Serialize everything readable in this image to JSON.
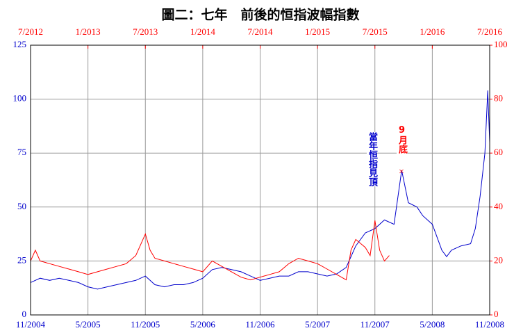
{
  "chart_data": {
    "type": "line",
    "title": "圖二：七年　前後的恒指波幅指數",
    "xlim": [
      0,
      48
    ],
    "xticks": [
      {
        "value": 0,
        "label": "11/2004"
      },
      {
        "value": 6,
        "label": "5/2005"
      },
      {
        "value": 12,
        "label": "11/2005"
      },
      {
        "value": 18,
        "label": "5/2006"
      },
      {
        "value": 24,
        "label": "11/2006"
      },
      {
        "value": 30,
        "label": "5/2007"
      },
      {
        "value": 36,
        "label": "11/2007"
      },
      {
        "value": 42,
        "label": "5/2008"
      },
      {
        "value": 48,
        "label": "11/2008"
      }
    ],
    "x2lim": [
      0,
      48
    ],
    "x2ticks": [
      {
        "value": 0,
        "label": "7/2012"
      },
      {
        "value": 6,
        "label": "1/2013"
      },
      {
        "value": 12,
        "label": "7/2013"
      },
      {
        "value": 18,
        "label": "1/2014"
      },
      {
        "value": 24,
        "label": "7/2014"
      },
      {
        "value": 30,
        "label": "1/2015"
      },
      {
        "value": 36,
        "label": "7/2015"
      },
      {
        "value": 42,
        "label": "1/2016"
      },
      {
        "value": 48,
        "label": "7/2016"
      }
    ],
    "ylim": [
      0,
      125
    ],
    "yticks": [
      0,
      25,
      50,
      75,
      100,
      125
    ],
    "y2lim": [
      0,
      100
    ],
    "y2ticks": [
      0,
      20,
      40,
      60,
      80,
      100
    ],
    "grid": true,
    "series": [
      {
        "color": "#0000cc",
        "x": [
          0,
          1,
          2,
          3,
          4,
          5,
          6,
          7,
          8,
          9,
          10,
          11,
          12,
          13,
          14,
          15,
          16,
          17,
          18,
          19,
          20,
          21,
          22,
          23,
          24,
          25,
          26,
          27,
          28,
          29,
          30,
          31,
          32,
          33,
          34,
          35,
          36,
          37,
          38,
          38.8,
          39.5,
          40.4,
          41,
          42,
          43,
          43.5,
          44,
          45,
          46,
          46.5,
          47,
          47.5,
          47.8,
          48
        ],
        "values": [
          15,
          17,
          16,
          17,
          16,
          15,
          13,
          12,
          13,
          14,
          15,
          16,
          18,
          14,
          13,
          14,
          14,
          15,
          17,
          21,
          22,
          21,
          20,
          18,
          16,
          17,
          18,
          18,
          20,
          20,
          19,
          18,
          19,
          22,
          32,
          38,
          40,
          44,
          42,
          67,
          52,
          50,
          46,
          42,
          30,
          27,
          30,
          32,
          33,
          40,
          55,
          75,
          104,
          80
        ]
      },
      {
        "color": "#ff0000",
        "axis": "y2",
        "xaxis": "x2",
        "x": [
          0,
          0.5,
          1,
          2,
          3,
          4,
          5,
          6,
          7,
          8,
          9,
          10,
          11,
          12,
          12.5,
          13,
          14,
          15,
          16,
          17,
          18,
          19,
          20,
          21,
          22,
          23,
          24,
          25,
          26,
          27,
          28,
          29,
          30,
          31,
          32,
          33,
          33.5,
          34,
          35,
          35.5,
          36,
          36.5,
          37,
          37.5
        ],
        "values": [
          20,
          24,
          20,
          19,
          18,
          17,
          16,
          15,
          16,
          17,
          18,
          19,
          22,
          30,
          24,
          21,
          20,
          19,
          18,
          17,
          16,
          20,
          18,
          16,
          14,
          13,
          14,
          15,
          16,
          19,
          21,
          20,
          19,
          17,
          15,
          13,
          24,
          28,
          25,
          22,
          35,
          24,
          20,
          22
        ]
      }
    ],
    "annotations": [
      {
        "text": "當年恒指見頂",
        "color": "#0000cc"
      },
      {
        "text": "9月底",
        "color": "#ff0000"
      }
    ]
  }
}
